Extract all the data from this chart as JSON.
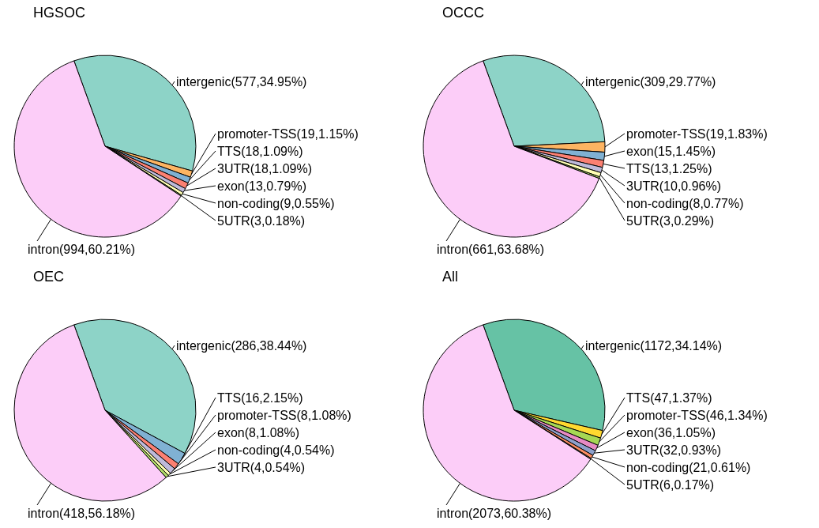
{
  "chart_data": [
    {
      "type": "pie",
      "title": "HGSOC",
      "categories": [
        "intergenic",
        "promoter-TSS",
        "TTS",
        "3UTR",
        "exon",
        "non-coding",
        "5UTR",
        "intron"
      ],
      "values": [
        34.95,
        1.15,
        1.09,
        1.09,
        0.79,
        0.55,
        0.18,
        60.21
      ],
      "colors": [
        "#8dd3c7",
        "#fdb462",
        "#80b1d3",
        "#fb8072",
        "#bebada",
        "#ffffb3",
        "#b3de69",
        "#fccdf8"
      ],
      "value_labels": [
        "(577,34.95%)",
        "(19,1.15%)",
        "(18,1.09%)",
        "(18,1.09%)",
        "(13,0.79%)",
        "(9,0.55%)",
        "(3,0.18%)",
        "(994,60.21%)"
      ]
    },
    {
      "type": "pie",
      "title": "OCCC",
      "categories": [
        "intergenic",
        "promoter-TSS",
        "exon",
        "TTS",
        "3UTR",
        "non-coding",
        "5UTR",
        "intron"
      ],
      "values": [
        29.77,
        1.83,
        1.45,
        1.25,
        0.96,
        0.77,
        0.29,
        63.68
      ],
      "colors": [
        "#8dd3c7",
        "#fdb462",
        "#80b1d3",
        "#fb8072",
        "#bebada",
        "#ffffb3",
        "#b3de69",
        "#fccdf8"
      ],
      "value_labels": [
        "(309,29.77%)",
        "(19,1.83%)",
        "(15,1.45%)",
        "(13,1.25%)",
        "(10,0.96%)",
        "(8,0.77%)",
        "(3,0.29%)",
        "(661,63.68%)"
      ]
    },
    {
      "type": "pie",
      "title": "OEC",
      "categories": [
        "intergenic",
        "TTS",
        "promoter-TSS",
        "exon",
        "non-coding",
        "3UTR",
        "intron"
      ],
      "values": [
        38.44,
        2.15,
        1.08,
        1.08,
        0.54,
        0.54,
        56.18
      ],
      "colors": [
        "#8dd3c7",
        "#80b1d3",
        "#fb8072",
        "#bebada",
        "#ffffb3",
        "#b3de69",
        "#fccdf8"
      ],
      "value_labels": [
        "(286,38.44%)",
        "(16,2.15%)",
        "(8,1.08%)",
        "(8,1.08%)",
        "(4,0.54%)",
        "(4,0.54%)",
        "(418,56.18%)"
      ]
    },
    {
      "type": "pie",
      "title": "All",
      "categories": [
        "intergenic",
        "TTS",
        "promoter-TSS",
        "exon",
        "3UTR",
        "non-coding",
        "5UTR",
        "intron"
      ],
      "values": [
        34.14,
        1.37,
        1.34,
        1.05,
        0.93,
        0.61,
        0.17,
        60.38
      ],
      "colors": [
        "#66c2a5",
        "#ffd92f",
        "#a6d854",
        "#e78ac3",
        "#8da0cb",
        "#fc8d62",
        "#e5c494",
        "#fccdf8"
      ],
      "value_labels": [
        "(1172,34.14%)",
        "(47,1.37%)",
        "(46,1.34%)",
        "(36,1.05%)",
        "(32,0.93%)",
        "(21,0.61%)",
        "(6,0.17%)",
        "(2073,60.38%)"
      ]
    }
  ]
}
